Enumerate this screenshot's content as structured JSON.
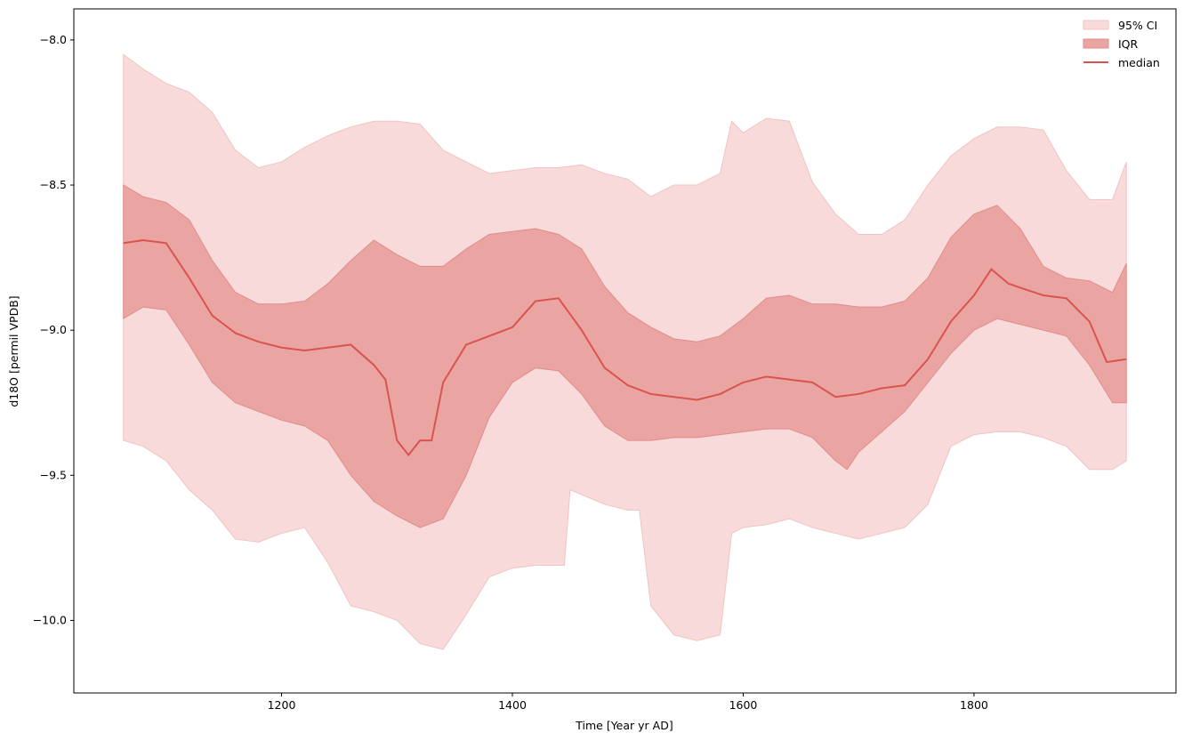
{
  "chart_data": {
    "type": "area",
    "title": "",
    "xlabel": "Time [Year yr AD]",
    "ylabel": "d18O [permil VPDB]",
    "xlim": [
      1020,
      1975
    ],
    "ylim": [
      -10.25,
      -7.893
    ],
    "xticks": [
      1200,
      1400,
      1600,
      1800
    ],
    "xtick_labels": [
      "1200",
      "1400",
      "1600",
      "1800"
    ],
    "yticks": [
      -8.0,
      -8.5,
      -9.0,
      -9.5,
      -10.0
    ],
    "ytick_labels": [
      "−8.0",
      "−8.5",
      "−9.0",
      "−9.5",
      "−10.0"
    ],
    "grid": false,
    "legend": {
      "placement": "top-right",
      "entries": [
        "95% CI",
        "IQR",
        "median"
      ]
    },
    "colors": {
      "ci": "#f7dad9",
      "ci_edge": "#f0c4c2",
      "iqr": "#eaa5a3",
      "iqr_edge": "#e08c89",
      "median": "#d9534f"
    },
    "series": [
      {
        "name": "95% CI upper",
        "points": [
          [
            1063,
            -8.05
          ],
          [
            1080,
            -8.1
          ],
          [
            1100,
            -8.15
          ],
          [
            1120,
            -8.18
          ],
          [
            1140,
            -8.25
          ],
          [
            1160,
            -8.38
          ],
          [
            1180,
            -8.44
          ],
          [
            1200,
            -8.42
          ],
          [
            1220,
            -8.37
          ],
          [
            1240,
            -8.33
          ],
          [
            1260,
            -8.3
          ],
          [
            1280,
            -8.28
          ],
          [
            1300,
            -8.28
          ],
          [
            1320,
            -8.29
          ],
          [
            1340,
            -8.38
          ],
          [
            1360,
            -8.42
          ],
          [
            1380,
            -8.46
          ],
          [
            1400,
            -8.45
          ],
          [
            1420,
            -8.44
          ],
          [
            1440,
            -8.44
          ],
          [
            1460,
            -8.43
          ],
          [
            1480,
            -8.46
          ],
          [
            1500,
            -8.48
          ],
          [
            1520,
            -8.54
          ],
          [
            1540,
            -8.5
          ],
          [
            1560,
            -8.5
          ],
          [
            1580,
            -8.46
          ],
          [
            1590,
            -8.28
          ],
          [
            1600,
            -8.32
          ],
          [
            1620,
            -8.27
          ],
          [
            1640,
            -8.28
          ],
          [
            1660,
            -8.49
          ],
          [
            1680,
            -8.6
          ],
          [
            1700,
            -8.67
          ],
          [
            1720,
            -8.67
          ],
          [
            1740,
            -8.62
          ],
          [
            1760,
            -8.5
          ],
          [
            1780,
            -8.4
          ],
          [
            1800,
            -8.34
          ],
          [
            1820,
            -8.3
          ],
          [
            1840,
            -8.3
          ],
          [
            1860,
            -8.31
          ],
          [
            1880,
            -8.45
          ],
          [
            1900,
            -8.55
          ],
          [
            1920,
            -8.55
          ],
          [
            1932,
            -8.42
          ]
        ]
      },
      {
        "name": "95% CI lower",
        "points": [
          [
            1063,
            -9.38
          ],
          [
            1080,
            -9.4
          ],
          [
            1100,
            -9.45
          ],
          [
            1120,
            -9.55
          ],
          [
            1140,
            -9.62
          ],
          [
            1160,
            -9.72
          ],
          [
            1180,
            -9.73
          ],
          [
            1200,
            -9.7
          ],
          [
            1220,
            -9.68
          ],
          [
            1240,
            -9.8
          ],
          [
            1260,
            -9.95
          ],
          [
            1280,
            -9.97
          ],
          [
            1300,
            -10.0
          ],
          [
            1320,
            -10.08
          ],
          [
            1340,
            -10.1
          ],
          [
            1360,
            -9.98
          ],
          [
            1380,
            -9.85
          ],
          [
            1400,
            -9.82
          ],
          [
            1420,
            -9.81
          ],
          [
            1445,
            -9.81
          ],
          [
            1450,
            -9.55
          ],
          [
            1480,
            -9.6
          ],
          [
            1500,
            -9.62
          ],
          [
            1510,
            -9.62
          ],
          [
            1520,
            -9.95
          ],
          [
            1540,
            -10.05
          ],
          [
            1560,
            -10.07
          ],
          [
            1580,
            -10.05
          ],
          [
            1590,
            -9.7
          ],
          [
            1600,
            -9.68
          ],
          [
            1620,
            -9.67
          ],
          [
            1640,
            -9.65
          ],
          [
            1660,
            -9.68
          ],
          [
            1680,
            -9.7
          ],
          [
            1700,
            -9.72
          ],
          [
            1720,
            -9.7
          ],
          [
            1740,
            -9.68
          ],
          [
            1760,
            -9.6
          ],
          [
            1780,
            -9.4
          ],
          [
            1800,
            -9.36
          ],
          [
            1820,
            -9.35
          ],
          [
            1840,
            -9.35
          ],
          [
            1860,
            -9.37
          ],
          [
            1880,
            -9.4
          ],
          [
            1900,
            -9.48
          ],
          [
            1920,
            -9.48
          ],
          [
            1932,
            -9.45
          ]
        ]
      },
      {
        "name": "IQR upper",
        "points": [
          [
            1063,
            -8.5
          ],
          [
            1080,
            -8.54
          ],
          [
            1100,
            -8.56
          ],
          [
            1120,
            -8.62
          ],
          [
            1140,
            -8.76
          ],
          [
            1160,
            -8.87
          ],
          [
            1180,
            -8.91
          ],
          [
            1200,
            -8.91
          ],
          [
            1220,
            -8.9
          ],
          [
            1240,
            -8.84
          ],
          [
            1260,
            -8.76
          ],
          [
            1280,
            -8.69
          ],
          [
            1300,
            -8.74
          ],
          [
            1320,
            -8.78
          ],
          [
            1340,
            -8.78
          ],
          [
            1360,
            -8.72
          ],
          [
            1380,
            -8.67
          ],
          [
            1400,
            -8.66
          ],
          [
            1420,
            -8.65
          ],
          [
            1440,
            -8.67
          ],
          [
            1460,
            -8.72
          ],
          [
            1480,
            -8.85
          ],
          [
            1500,
            -8.94
          ],
          [
            1520,
            -8.99
          ],
          [
            1540,
            -9.03
          ],
          [
            1560,
            -9.04
          ],
          [
            1580,
            -9.02
          ],
          [
            1600,
            -8.96
          ],
          [
            1620,
            -8.89
          ],
          [
            1640,
            -8.88
          ],
          [
            1660,
            -8.91
          ],
          [
            1680,
            -8.91
          ],
          [
            1700,
            -8.92
          ],
          [
            1720,
            -8.92
          ],
          [
            1740,
            -8.9
          ],
          [
            1760,
            -8.82
          ],
          [
            1780,
            -8.68
          ],
          [
            1800,
            -8.6
          ],
          [
            1820,
            -8.57
          ],
          [
            1840,
            -8.65
          ],
          [
            1860,
            -8.78
          ],
          [
            1880,
            -8.82
          ],
          [
            1900,
            -8.83
          ],
          [
            1920,
            -8.87
          ],
          [
            1932,
            -8.77
          ]
        ]
      },
      {
        "name": "IQR lower",
        "points": [
          [
            1063,
            -8.96
          ],
          [
            1080,
            -8.92
          ],
          [
            1100,
            -8.93
          ],
          [
            1120,
            -9.05
          ],
          [
            1140,
            -9.18
          ],
          [
            1160,
            -9.25
          ],
          [
            1180,
            -9.28
          ],
          [
            1200,
            -9.31
          ],
          [
            1220,
            -9.33
          ],
          [
            1240,
            -9.38
          ],
          [
            1260,
            -9.5
          ],
          [
            1280,
            -9.59
          ],
          [
            1300,
            -9.64
          ],
          [
            1320,
            -9.68
          ],
          [
            1340,
            -9.65
          ],
          [
            1360,
            -9.5
          ],
          [
            1380,
            -9.3
          ],
          [
            1400,
            -9.18
          ],
          [
            1420,
            -9.13
          ],
          [
            1440,
            -9.14
          ],
          [
            1460,
            -9.22
          ],
          [
            1480,
            -9.33
          ],
          [
            1500,
            -9.38
          ],
          [
            1520,
            -9.38
          ],
          [
            1540,
            -9.37
          ],
          [
            1560,
            -9.37
          ],
          [
            1580,
            -9.36
          ],
          [
            1600,
            -9.35
          ],
          [
            1620,
            -9.34
          ],
          [
            1640,
            -9.34
          ],
          [
            1660,
            -9.37
          ],
          [
            1680,
            -9.45
          ],
          [
            1690,
            -9.48
          ],
          [
            1700,
            -9.42
          ],
          [
            1720,
            -9.35
          ],
          [
            1740,
            -9.28
          ],
          [
            1760,
            -9.18
          ],
          [
            1780,
            -9.08
          ],
          [
            1800,
            -9.0
          ],
          [
            1820,
            -8.96
          ],
          [
            1840,
            -8.98
          ],
          [
            1860,
            -9.0
          ],
          [
            1880,
            -9.02
          ],
          [
            1900,
            -9.12
          ],
          [
            1920,
            -9.25
          ],
          [
            1932,
            -9.25
          ]
        ]
      },
      {
        "name": "median",
        "points": [
          [
            1063,
            -8.7
          ],
          [
            1080,
            -8.69
          ],
          [
            1100,
            -8.7
          ],
          [
            1120,
            -8.82
          ],
          [
            1140,
            -8.95
          ],
          [
            1160,
            -9.01
          ],
          [
            1180,
            -9.04
          ],
          [
            1200,
            -9.06
          ],
          [
            1220,
            -9.07
          ],
          [
            1240,
            -9.06
          ],
          [
            1260,
            -9.05
          ],
          [
            1280,
            -9.12
          ],
          [
            1290,
            -9.17
          ],
          [
            1300,
            -9.38
          ],
          [
            1310,
            -9.43
          ],
          [
            1320,
            -9.38
          ],
          [
            1330,
            -9.38
          ],
          [
            1340,
            -9.18
          ],
          [
            1360,
            -9.05
          ],
          [
            1380,
            -9.02
          ],
          [
            1400,
            -8.99
          ],
          [
            1420,
            -8.9
          ],
          [
            1440,
            -8.89
          ],
          [
            1460,
            -9.0
          ],
          [
            1480,
            -9.13
          ],
          [
            1500,
            -9.19
          ],
          [
            1520,
            -9.22
          ],
          [
            1540,
            -9.23
          ],
          [
            1560,
            -9.24
          ],
          [
            1580,
            -9.22
          ],
          [
            1600,
            -9.18
          ],
          [
            1620,
            -9.16
          ],
          [
            1640,
            -9.17
          ],
          [
            1660,
            -9.18
          ],
          [
            1680,
            -9.23
          ],
          [
            1700,
            -9.22
          ],
          [
            1720,
            -9.2
          ],
          [
            1740,
            -9.19
          ],
          [
            1760,
            -9.1
          ],
          [
            1780,
            -8.97
          ],
          [
            1800,
            -8.88
          ],
          [
            1815,
            -8.79
          ],
          [
            1830,
            -8.84
          ],
          [
            1860,
            -8.88
          ],
          [
            1880,
            -8.89
          ],
          [
            1900,
            -8.97
          ],
          [
            1915,
            -9.11
          ],
          [
            1932,
            -9.1
          ]
        ]
      }
    ]
  }
}
